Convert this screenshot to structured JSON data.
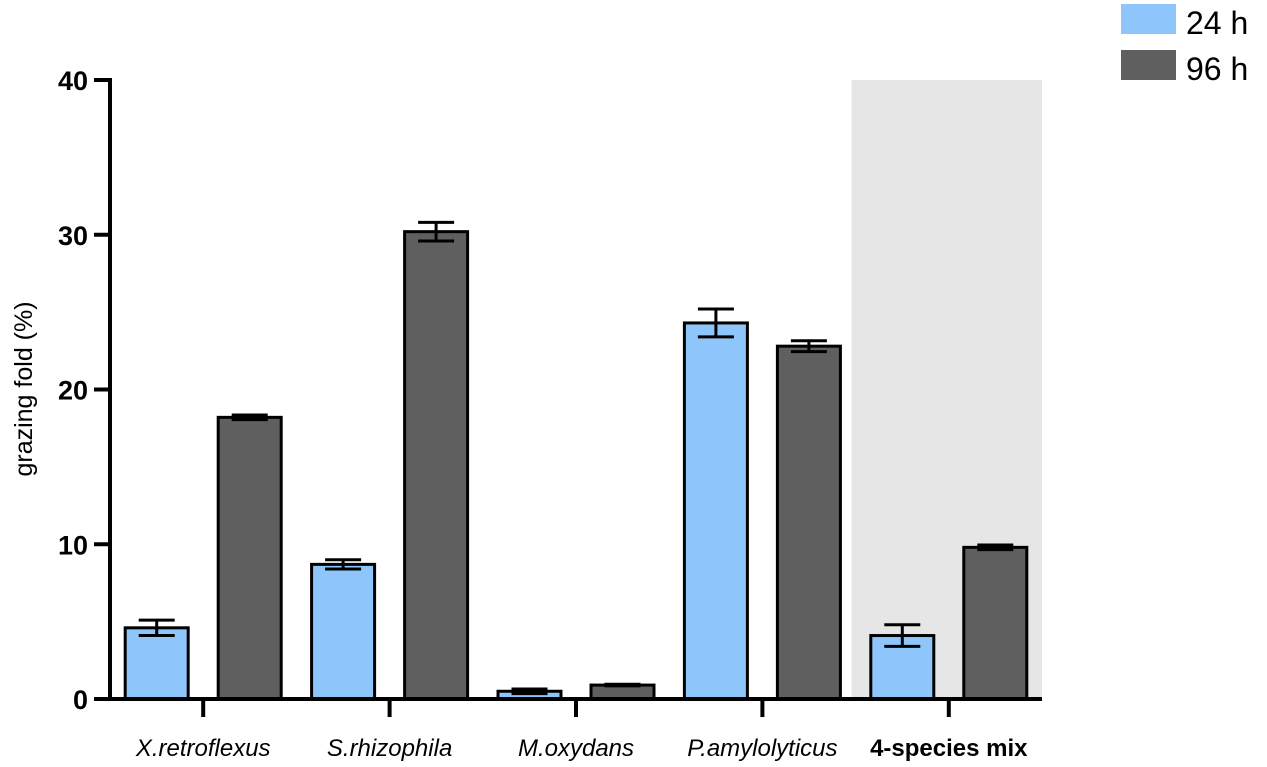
{
  "chart_data": {
    "type": "bar",
    "title": "",
    "xlabel": "",
    "ylabel": "grazing fold (%)",
    "ylim": [
      0,
      40
    ],
    "yticks": [
      0,
      10,
      20,
      30,
      40
    ],
    "categories": [
      "X.retroflexus",
      "S.rhizophila",
      "M.oxydans",
      "P.amylolyticus",
      "4-species mix"
    ],
    "category_styles": [
      "italic",
      "italic",
      "italic",
      "italic",
      "bold"
    ],
    "highlighted_category": "4-species mix",
    "series": [
      {
        "name": "24 h",
        "color": "#8ec6fb",
        "values": [
          4.6,
          8.7,
          0.5,
          24.3,
          4.1
        ],
        "errors": [
          0.5,
          0.3,
          0.15,
          0.9,
          0.7
        ]
      },
      {
        "name": "96 h",
        "color": "#5f5f5f",
        "values": [
          18.2,
          30.2,
          0.9,
          22.8,
          9.8
        ],
        "errors": [
          0.15,
          0.6,
          0.05,
          0.35,
          0.15
        ]
      }
    ],
    "legend_position": "top-right",
    "highlight_color": "#e6e6e6"
  }
}
